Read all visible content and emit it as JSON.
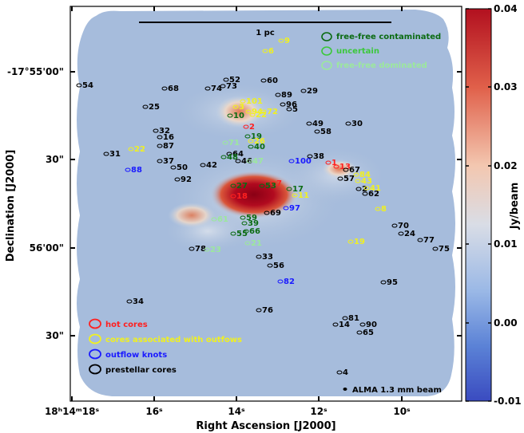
{
  "figure": {
    "xlabel": "Right Ascension [J2000]",
    "ylabel": "Declination [J2000]",
    "x_ticks": [
      {
        "label": "18ʰ14ᵐ18ˢ"
      },
      {
        "label": "16ˢ"
      },
      {
        "label": "14ˢ"
      },
      {
        "label": "12ˢ"
      },
      {
        "label": "10ˢ"
      }
    ],
    "y_ticks": [
      {
        "label": "-17°55'00\""
      },
      {
        "label": "30\""
      },
      {
        "label": "56'00\""
      },
      {
        "label": "30\""
      }
    ],
    "scalebar_label": "1 pc",
    "beam_label": "ALMA 1.3 mm beam",
    "colorbar": {
      "label": "Jy/beam",
      "ticks": [
        "0.04",
        "0.03",
        "0.02",
        "0.01",
        "0.00",
        "-0.01"
      ],
      "min": -0.01,
      "max": 0.04
    },
    "legend_top": [
      {
        "label": "free-free contaminated",
        "color": "#0b6b12"
      },
      {
        "label": "uncertain",
        "color": "#3cc83c"
      },
      {
        "label": "free-free dominated",
        "color": "#9ce89c"
      }
    ],
    "legend_bottom": [
      {
        "label": "hot cores",
        "color": "#ff2020"
      },
      {
        "label": "cores associated with outfows",
        "color": "#f0f020"
      },
      {
        "label": "outflow knots",
        "color": "#1a1aff"
      },
      {
        "label": "prestellar cores",
        "color": "#000000"
      }
    ],
    "labels": [
      {
        "t": "9",
        "c": "y"
      },
      {
        "t": "6",
        "c": "y"
      },
      {
        "t": "54",
        "c": "k"
      },
      {
        "t": "68",
        "c": "k"
      },
      {
        "t": "74",
        "c": "k"
      },
      {
        "t": "73",
        "c": "k"
      },
      {
        "t": "52",
        "c": "k"
      },
      {
        "t": "60",
        "c": "k"
      },
      {
        "t": "89",
        "c": "k"
      },
      {
        "t": "29",
        "c": "k"
      },
      {
        "t": "96",
        "c": "k"
      },
      {
        "t": "5",
        "c": "k"
      },
      {
        "t": "25",
        "c": "k"
      },
      {
        "t": "101",
        "c": "y"
      },
      {
        "t": "3",
        "c": "y"
      },
      {
        "t": "94",
        "c": "y"
      },
      {
        "t": "72",
        "c": "y"
      },
      {
        "t": "10",
        "c": "g"
      },
      {
        "t": "22",
        "c": "y"
      },
      {
        "t": "2",
        "c": "r"
      },
      {
        "t": "49",
        "c": "k"
      },
      {
        "t": "58",
        "c": "k"
      },
      {
        "t": "30",
        "c": "k"
      },
      {
        "t": "32",
        "c": "k"
      },
      {
        "t": "16",
        "c": "k"
      },
      {
        "t": "87",
        "c": "k"
      },
      {
        "t": "19",
        "c": "g"
      },
      {
        "t": "26",
        "c": "y"
      },
      {
        "t": "71",
        "c": "l"
      },
      {
        "t": "40",
        "c": "g"
      },
      {
        "t": "31",
        "c": "k"
      },
      {
        "t": "22",
        "c": "y"
      },
      {
        "t": "64",
        "c": "k"
      },
      {
        "t": "48",
        "c": "g"
      },
      {
        "t": "46",
        "c": "k"
      },
      {
        "t": "47",
        "c": "l"
      },
      {
        "t": "100",
        "c": "b"
      },
      {
        "t": "38",
        "c": "k"
      },
      {
        "t": "1",
        "c": "r"
      },
      {
        "t": "13",
        "c": "r"
      },
      {
        "t": "67",
        "c": "k"
      },
      {
        "t": "88",
        "c": "b"
      },
      {
        "t": "37",
        "c": "k"
      },
      {
        "t": "42",
        "c": "k"
      },
      {
        "t": "50",
        "c": "k"
      },
      {
        "t": "84",
        "c": "y"
      },
      {
        "t": "57",
        "c": "k"
      },
      {
        "t": "43",
        "c": "y"
      },
      {
        "t": "92",
        "c": "k"
      },
      {
        "t": "7",
        "c": "r"
      },
      {
        "t": "27",
        "c": "g"
      },
      {
        "t": "53",
        "c": "g"
      },
      {
        "t": "17",
        "c": "g"
      },
      {
        "t": "2",
        "c": "k"
      },
      {
        "t": "41",
        "c": "y"
      },
      {
        "t": "62",
        "c": "k"
      },
      {
        "t": "18",
        "c": "r"
      },
      {
        "t": "11",
        "c": "y"
      },
      {
        "t": "8",
        "c": "y"
      },
      {
        "t": "97",
        "c": "b"
      },
      {
        "t": "69",
        "c": "k"
      },
      {
        "t": "59",
        "c": "g"
      },
      {
        "t": "61",
        "c": "l"
      },
      {
        "t": "39",
        "c": "g"
      },
      {
        "t": "55",
        "c": "g"
      },
      {
        "t": "66",
        "c": "g"
      },
      {
        "t": "70",
        "c": "k"
      },
      {
        "t": "24",
        "c": "k"
      },
      {
        "t": "77",
        "c": "k"
      },
      {
        "t": "75",
        "c": "k"
      },
      {
        "t": "19",
        "c": "y"
      },
      {
        "t": "78",
        "c": "k"
      },
      {
        "t": "23",
        "c": "l"
      },
      {
        "t": "21",
        "c": "l"
      },
      {
        "t": "33",
        "c": "k"
      },
      {
        "t": "56",
        "c": "k"
      },
      {
        "t": "82",
        "c": "b"
      },
      {
        "t": "95",
        "c": "k"
      },
      {
        "t": "34",
        "c": "k"
      },
      {
        "t": "76",
        "c": "k"
      },
      {
        "t": "81",
        "c": "k"
      },
      {
        "t": "14",
        "c": "k"
      },
      {
        "t": "90",
        "c": "k"
      },
      {
        "t": "65",
        "c": "k"
      },
      {
        "t": "4",
        "c": "k"
      }
    ],
    "label_colors": {
      "k": "#000000",
      "y": "#f0f020",
      "r": "#ff2020",
      "g": "#0b6b12",
      "l": "#9ce89c",
      "b": "#1a1aff"
    }
  }
}
